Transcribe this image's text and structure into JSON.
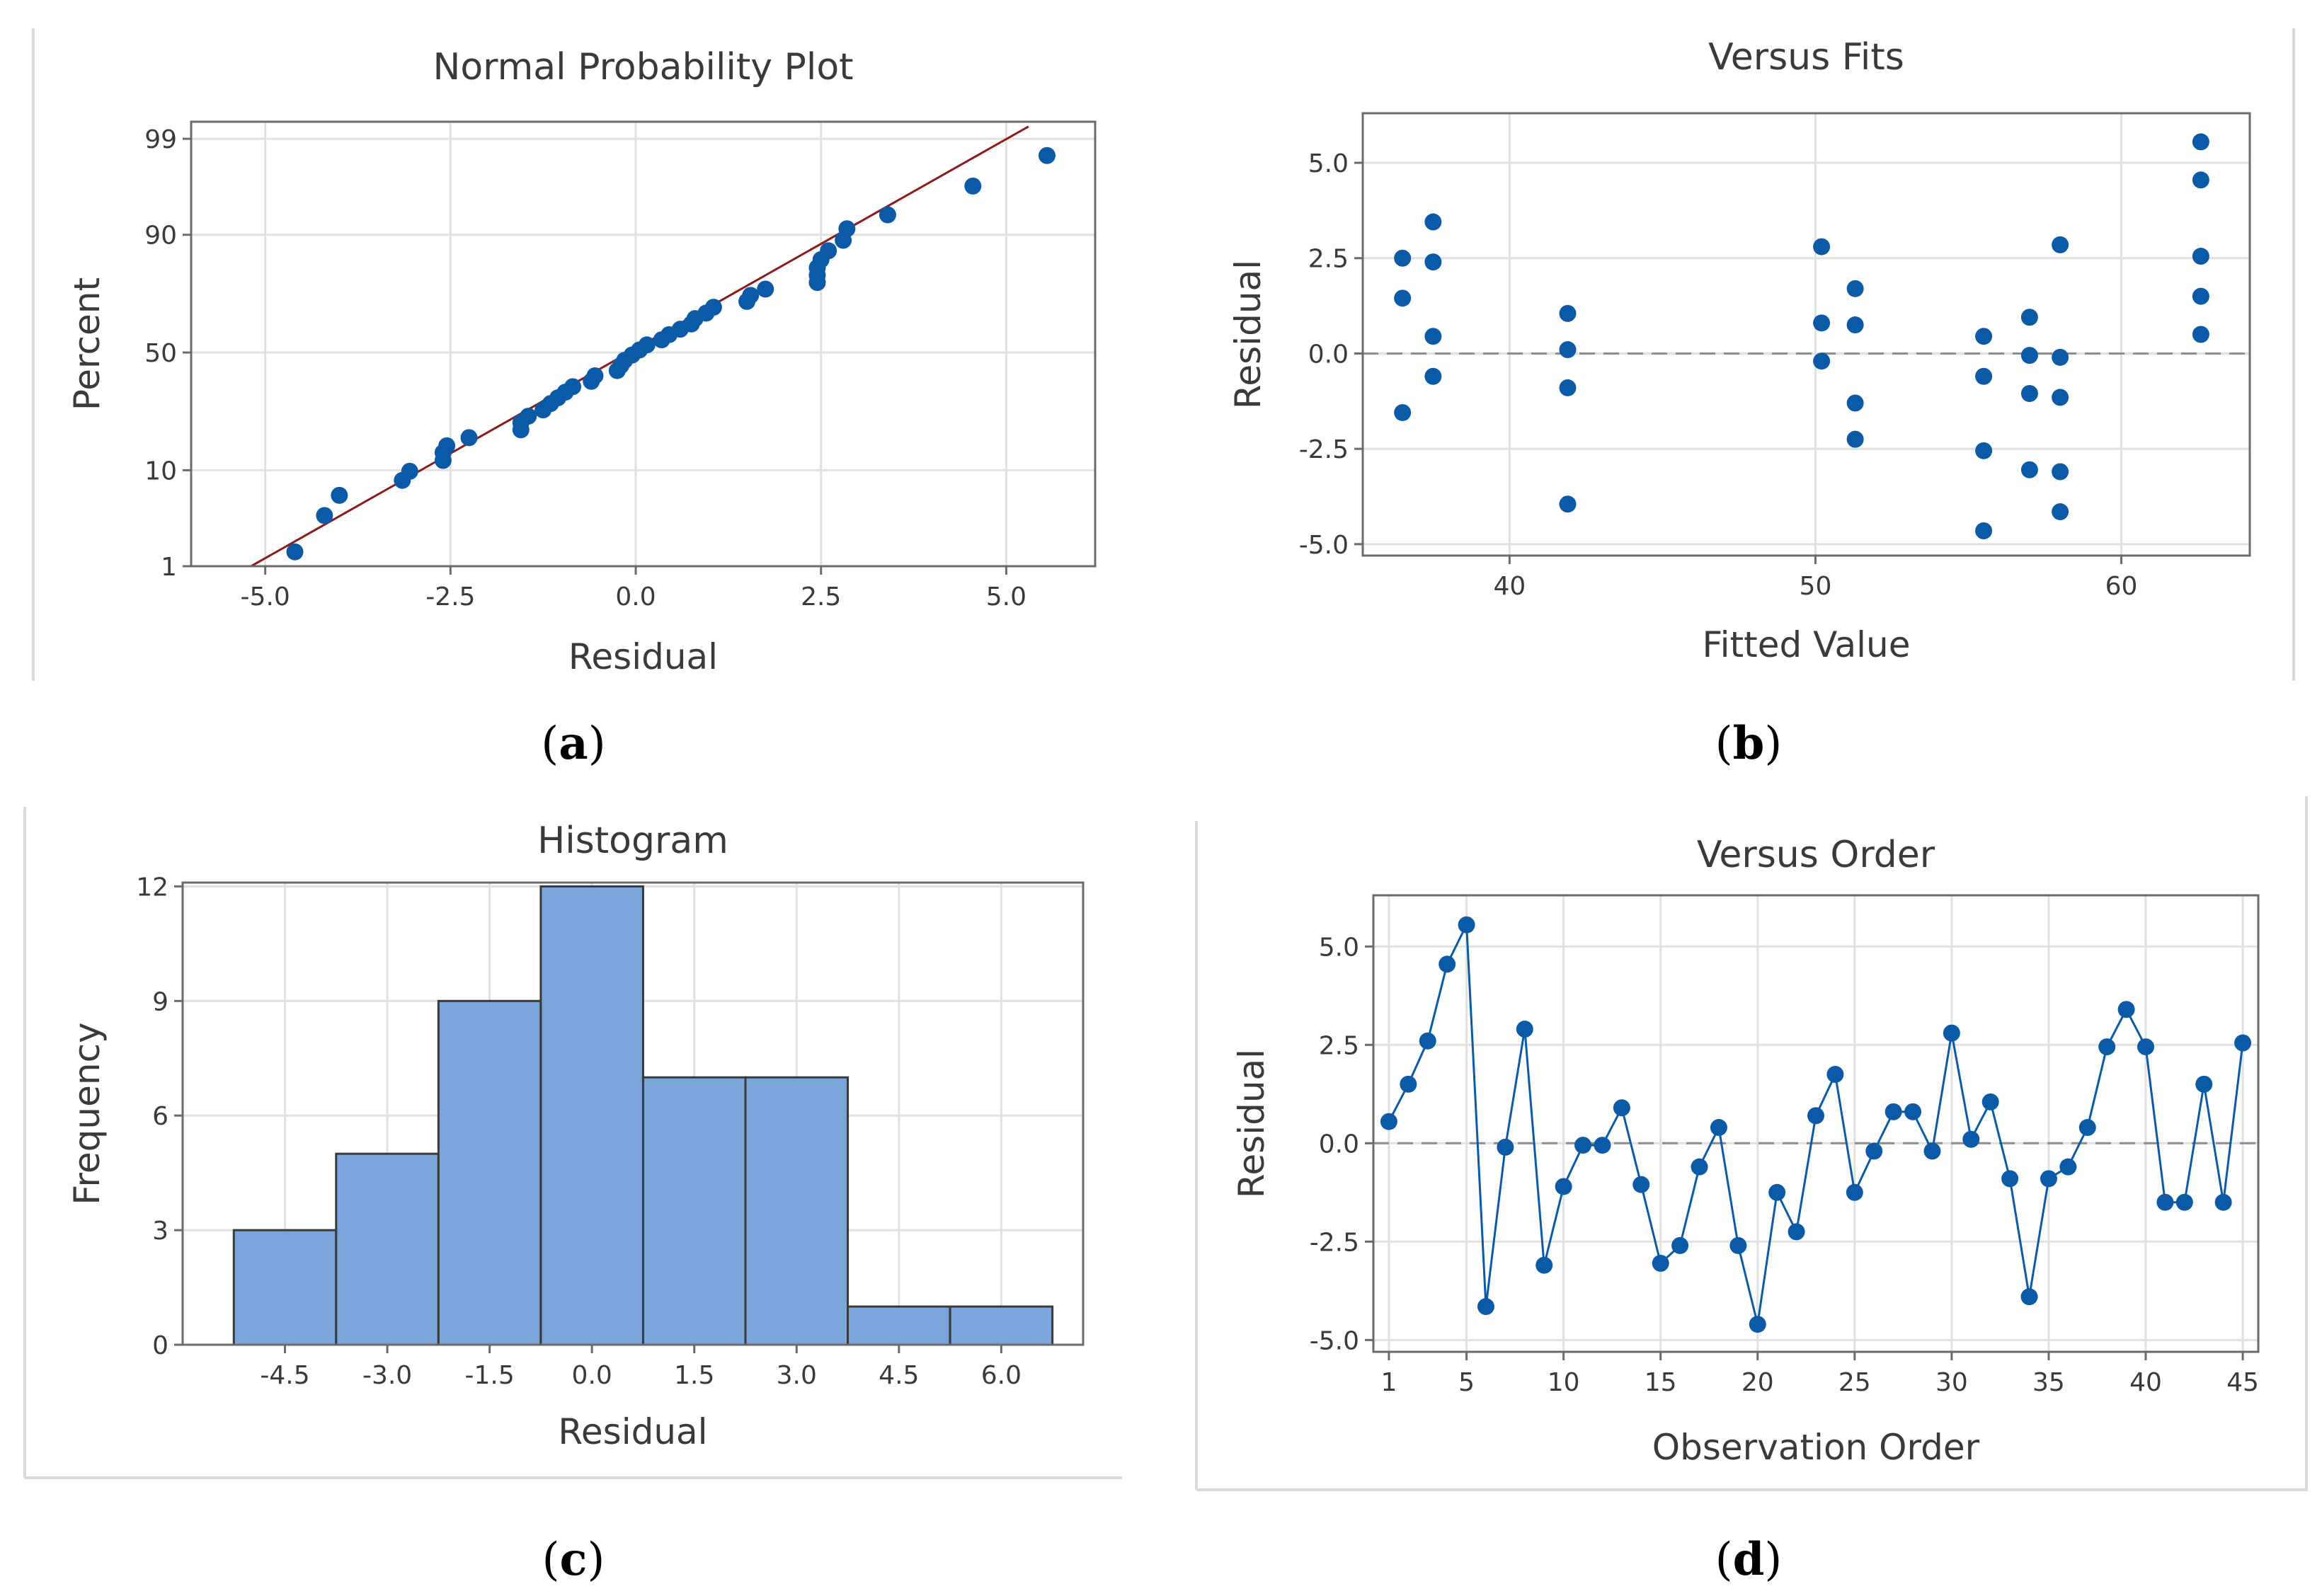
{
  "colors": {
    "marker": "#0B5AA8",
    "bar_fill": "#7BA5DA",
    "bar_edge": "#3a3a3a",
    "grid": "#e1e1e1",
    "frame": "#6b6b6b",
    "fit_line": "#8c1c1c",
    "zero_line": "#8c8c8c",
    "text": "#3a3a3a",
    "panel_border": "#d9d9d9"
  },
  "panels": {
    "a": {
      "caption_open": "(",
      "caption_letter": "a",
      "caption_close": ")"
    },
    "b": {
      "caption_open": "(",
      "caption_letter": "b",
      "caption_close": ")"
    },
    "c": {
      "caption_open": "(",
      "caption_letter": "c",
      "caption_close": ")"
    },
    "d": {
      "caption_open": "(",
      "caption_letter": "d",
      "caption_close": ")"
    }
  },
  "chart_data": [
    {
      "id": "a",
      "type": "scatter",
      "title": "Normal Probability Plot",
      "xlabel": "Residual",
      "ylabel": "Percent",
      "xlim": [
        -6.0,
        6.2
      ],
      "xticks": [
        -5.0,
        -2.5,
        0.0,
        2.5,
        5.0
      ],
      "xtick_labels": [
        "-5.0",
        "-2.5",
        "0.0",
        "2.5",
        "5.0"
      ],
      "yscale": "normal-probability",
      "ylim_percent": [
        1,
        99.4
      ],
      "yticks": [
        1,
        10,
        50,
        90,
        99
      ],
      "ytick_labels": [
        "1",
        "10",
        "50",
        "90",
        "99"
      ],
      "fit_line": {
        "x0": -5.2,
        "x1": 5.3,
        "z0": -2.33,
        "z1": 2.46
      },
      "points": [
        [
          -4.6,
          1.5
        ],
        [
          -4.2,
          3.8
        ],
        [
          -4.0,
          6.0
        ],
        [
          -3.15,
          8.2
        ],
        [
          -3.05,
          9.8
        ],
        [
          -2.6,
          12.0
        ],
        [
          -2.6,
          13.8
        ],
        [
          -2.55,
          15.5
        ],
        [
          -2.25,
          17.7
        ],
        [
          -1.55,
          20.0
        ],
        [
          -1.55,
          22.2
        ],
        [
          -1.45,
          24.4
        ],
        [
          -1.25,
          26.6
        ],
        [
          -1.15,
          28.9
        ],
        [
          -1.05,
          31.1
        ],
        [
          -0.95,
          33.3
        ],
        [
          -0.85,
          35.5
        ],
        [
          -0.6,
          37.7
        ],
        [
          -0.55,
          40.0
        ],
        [
          -0.25,
          42.2
        ],
        [
          -0.2,
          44.4
        ],
        [
          -0.15,
          46.6
        ],
        [
          -0.05,
          48.9
        ],
        [
          0.05,
          51.1
        ],
        [
          0.15,
          53.3
        ],
        [
          0.35,
          55.5
        ],
        [
          0.45,
          57.7
        ],
        [
          0.6,
          60.0
        ],
        [
          0.75,
          62.2
        ],
        [
          0.8,
          64.4
        ],
        [
          0.95,
          66.6
        ],
        [
          1.05,
          68.9
        ],
        [
          1.5,
          71.1
        ],
        [
          1.55,
          73.3
        ],
        [
          1.75,
          75.5
        ],
        [
          2.45,
          77.7
        ],
        [
          2.45,
          80.0
        ],
        [
          2.45,
          82.2
        ],
        [
          2.5,
          84.4
        ],
        [
          2.6,
          86.6
        ],
        [
          2.8,
          88.9
        ],
        [
          2.85,
          91.1
        ],
        [
          3.4,
          93.3
        ],
        [
          4.55,
          96.5
        ],
        [
          5.55,
          98.4
        ]
      ]
    },
    {
      "id": "b",
      "type": "scatter",
      "title": "Versus Fits",
      "xlabel": "Fitted Value",
      "ylabel": "Residual",
      "xlim": [
        35.2,
        64.2
      ],
      "ylim": [
        -5.3,
        6.3
      ],
      "xticks": [
        40,
        50,
        60
      ],
      "xtick_labels": [
        "40",
        "50",
        "60"
      ],
      "yticks": [
        -5.0,
        -2.5,
        0.0,
        2.5,
        5.0
      ],
      "ytick_labels": [
        "-5.0",
        "-2.5",
        "0.0",
        "2.5",
        "5.0"
      ],
      "reference_line": 0.0,
      "points": [
        [
          36.5,
          2.5
        ],
        [
          36.5,
          1.45
        ],
        [
          36.5,
          -1.55
        ],
        [
          37.5,
          3.45
        ],
        [
          37.5,
          2.4
        ],
        [
          37.5,
          0.45
        ],
        [
          37.5,
          -0.6
        ],
        [
          41.9,
          1.05
        ],
        [
          41.9,
          0.1
        ],
        [
          41.9,
          -0.9
        ],
        [
          41.9,
          -3.95
        ],
        [
          50.2,
          2.8
        ],
        [
          50.2,
          0.8
        ],
        [
          50.2,
          -0.2
        ],
        [
          51.3,
          1.7
        ],
        [
          51.3,
          0.75
        ],
        [
          51.3,
          -1.3
        ],
        [
          51.3,
          -2.25
        ],
        [
          55.5,
          0.45
        ],
        [
          55.5,
          -0.6
        ],
        [
          55.5,
          -2.55
        ],
        [
          55.5,
          -4.65
        ],
        [
          57.0,
          0.95
        ],
        [
          57.0,
          -0.05
        ],
        [
          57.0,
          -1.05
        ],
        [
          57.0,
          -3.05
        ],
        [
          58.0,
          2.85
        ],
        [
          58.0,
          -0.1
        ],
        [
          58.0,
          -1.15
        ],
        [
          58.0,
          -3.1
        ],
        [
          58.0,
          -4.15
        ],
        [
          62.6,
          5.55
        ],
        [
          62.6,
          4.55
        ],
        [
          62.6,
          2.55
        ],
        [
          62.6,
          1.5
        ],
        [
          62.6,
          0.5
        ]
      ]
    },
    {
      "id": "c",
      "type": "bar",
      "title": "Histogram",
      "xlabel": "Residual",
      "ylabel": "Frequency",
      "xlim": [
        -6.0,
        7.2
      ],
      "ylim": [
        0,
        12.1
      ],
      "xticks": [
        -4.5,
        -3.0,
        -1.5,
        0.0,
        1.5,
        3.0,
        4.5,
        6.0
      ],
      "xtick_labels": [
        "-4.5",
        "-3.0",
        "-1.5",
        "0.0",
        "1.5",
        "3.0",
        "4.5",
        "6.0"
      ],
      "yticks": [
        0,
        3,
        6,
        9,
        12
      ],
      "ytick_labels": [
        "0",
        "3",
        "6",
        "9",
        "12"
      ],
      "bin_width": 1.5,
      "bin_centers": [
        -4.5,
        -3.0,
        -1.5,
        0.0,
        1.5,
        3.0,
        4.5,
        6.0
      ],
      "values": [
        3,
        5,
        9,
        12,
        7,
        7,
        1,
        1
      ]
    },
    {
      "id": "d",
      "type": "line",
      "title": "Versus Order",
      "xlabel": "Observation Order",
      "ylabel": "Residual",
      "xlim": [
        0.2,
        45.8
      ],
      "ylim": [
        -5.3,
        6.3
      ],
      "xticks": [
        1,
        5,
        10,
        15,
        20,
        25,
        30,
        35,
        40,
        45
      ],
      "xtick_labels": [
        "1",
        "5",
        "10",
        "15",
        "20",
        "25",
        "30",
        "35",
        "40",
        "45"
      ],
      "yticks": [
        -5.0,
        -2.5,
        0.0,
        2.5,
        5.0
      ],
      "ytick_labels": [
        "-5.0",
        "-2.5",
        "0.0",
        "2.5",
        "5.0"
      ],
      "reference_line": 0.0,
      "x": [
        1,
        2,
        3,
        4,
        5,
        6,
        7,
        8,
        9,
        10,
        11,
        12,
        13,
        14,
        15,
        16,
        17,
        18,
        19,
        20,
        21,
        22,
        23,
        24,
        25,
        26,
        27,
        28,
        29,
        30,
        31,
        32,
        33,
        34,
        35,
        36,
        37,
        38,
        39,
        40,
        41,
        42,
        43,
        44,
        45
      ],
      "values": [
        0.55,
        1.5,
        2.6,
        4.55,
        5.55,
        -4.15,
        -0.1,
        2.9,
        -3.1,
        -1.1,
        -0.05,
        -0.05,
        0.9,
        -1.05,
        -3.05,
        -2.6,
        -0.6,
        0.4,
        -2.6,
        -4.6,
        -1.25,
        -2.25,
        0.7,
        1.75,
        -1.25,
        -0.2,
        0.8,
        0.8,
        -0.2,
        2.8,
        0.1,
        1.05,
        -0.9,
        -3.9,
        -0.9,
        -0.6,
        0.4,
        2.45,
        3.4,
        2.45,
        -1.5,
        -1.5,
        1.5,
        -1.5,
        2.55
      ]
    }
  ]
}
